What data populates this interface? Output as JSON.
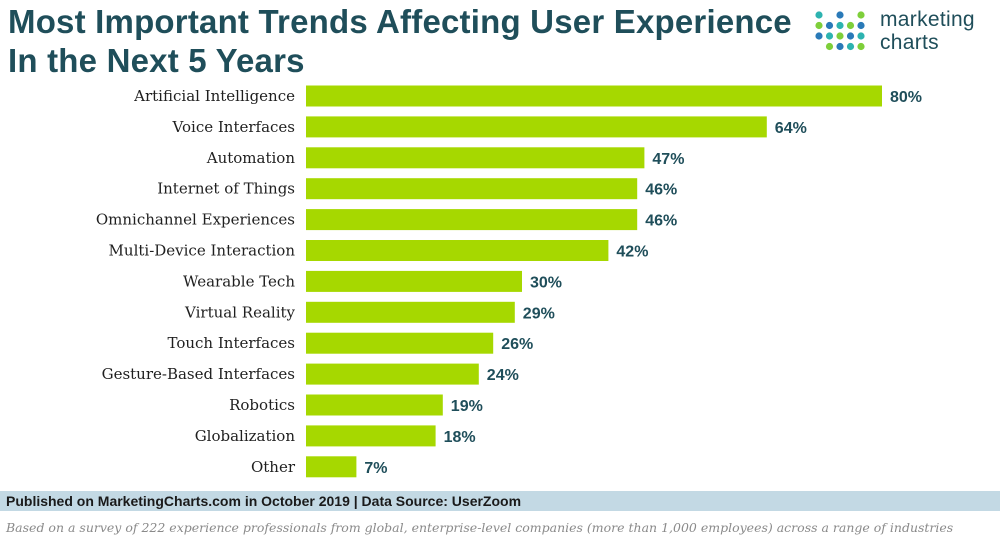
{
  "title_line1": "Most Important Trends Affecting User Experience",
  "title_line2": "In the Next 5 Years",
  "logo": {
    "line1": "marketing",
    "line2": "charts",
    "dot_colors": [
      "#2db3b0",
      "#7ecf3a",
      "#2a7ab8"
    ]
  },
  "chart_data": {
    "type": "bar",
    "orientation": "horizontal",
    "categories": [
      "Artificial Intelligence",
      "Voice Interfaces",
      "Automation",
      "Internet of Things",
      "Omnichannel Experiences",
      "Multi-Device Interaction",
      "Wearable Tech",
      "Virtual Reality",
      "Touch Interfaces",
      "Gesture-Based Interfaces",
      "Robotics",
      "Globalization",
      "Other"
    ],
    "values": [
      80,
      64,
      47,
      46,
      46,
      42,
      30,
      29,
      26,
      24,
      19,
      18,
      7
    ],
    "value_suffix": "%",
    "xlim": [
      0,
      100
    ],
    "grid": false,
    "bar_color": "#a6d800",
    "label_color": "#1f4e5a"
  },
  "footer": {
    "published": "Published on MarketingCharts.com in October 2019 | Data Source: UserZoom",
    "note": "Based on a survey of 222 experience professionals from global, enterprise-level companies (more than 1,000 employees) across a range of industries"
  }
}
